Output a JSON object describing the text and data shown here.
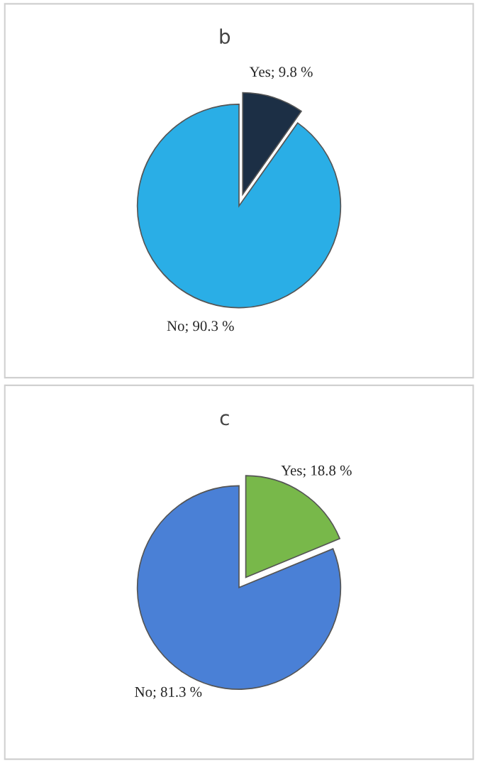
{
  "chart_data": [
    {
      "type": "pie",
      "title": "b",
      "categories": [
        "Yes",
        "No"
      ],
      "values": [
        9.8,
        90.3
      ],
      "colors": [
        "#1c2f45",
        "#2aaee6"
      ],
      "value_labels": [
        "9.8 %",
        "90.3 %"
      ],
      "legend": false
    },
    {
      "type": "pie",
      "title": "c",
      "categories": [
        "Yes",
        "No"
      ],
      "values": [
        18.8,
        81.3
      ],
      "colors": [
        "#78b84a",
        "#4a80d6"
      ],
      "value_labels": [
        "18.8 %",
        "81.3 %"
      ],
      "legend": false
    }
  ]
}
